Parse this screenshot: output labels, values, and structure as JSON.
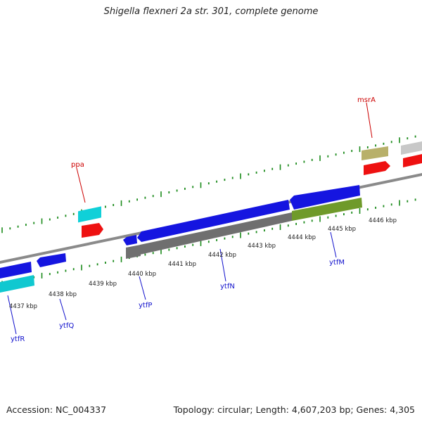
{
  "title": "Shigella flexneri 2a str. 301, complete genome",
  "footer": {
    "accession": "Accession: NC_004337",
    "summary": "Topology: circular; Length: 4,607,203 bp; Genes: 4,305"
  },
  "colors": {
    "backbone": "#888888",
    "tick": "#1a8a1a",
    "blue_gene": "#1515e0",
    "cyan_gene": "#10d0d8",
    "red_gene": "#ee1111",
    "gray_feature": "#6f6f6f",
    "olive_feature": "#6f9a2a",
    "tan_feature": "#b8b06a",
    "silver_feature": "#c8c8c8",
    "forward_label": "#cc0000",
    "reverse_label": "#1010cc"
  },
  "scale_labels": [
    "4437 kbp",
    "4438 kbp",
    "4439 kbp",
    "4440 kbp",
    "4441 kbp",
    "4442 kbp",
    "4443 kbp",
    "4444 kbp",
    "4445 kbp",
    "4446 kbp"
  ],
  "gene_labels": {
    "forward": [
      "ppa",
      "msrA"
    ],
    "reverse": [
      "ytfR",
      "ytfQ",
      "ytfP",
      "ytfN",
      "ytfM"
    ]
  }
}
